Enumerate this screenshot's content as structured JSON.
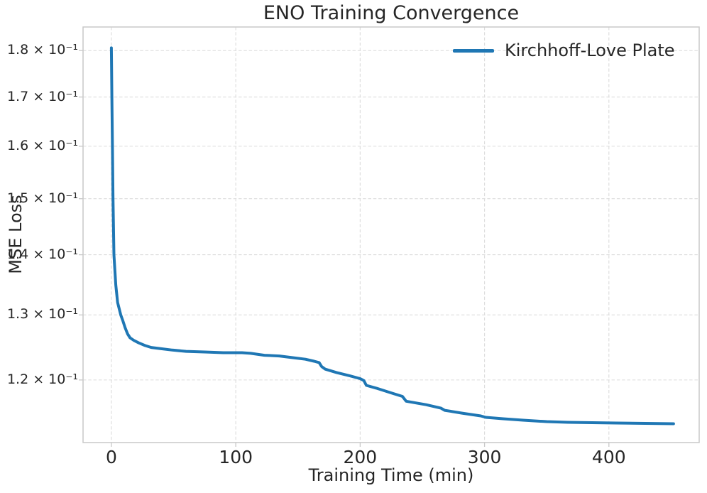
{
  "chart_data": {
    "type": "line",
    "title": "ENO Training Convergence",
    "xlabel": "Training Time (min)",
    "ylabel": "MSE Loss",
    "y_scale": "log",
    "grid": true,
    "xlim": [
      -22.8,
      472.6
    ],
    "ylim": [
      0.1111,
      0.1853
    ],
    "x_ticks": [
      0,
      100,
      200,
      300,
      400
    ],
    "x_tick_labels": [
      "0",
      "100",
      "200",
      "300",
      "400"
    ],
    "y_ticks": [
      0.12,
      0.13,
      0.14,
      0.15,
      0.16,
      0.17,
      0.18
    ],
    "y_tick_labels": [
      "1.2 × 10⁻¹",
      "1.3 × 10⁻¹",
      "1.4 × 10⁻¹",
      "1.5 × 10⁻¹",
      "1.6 × 10⁻¹",
      "1.7 × 10⁻¹",
      "1.8 × 10⁻¹"
    ],
    "legend": {
      "position": "upper right",
      "frame": false
    },
    "series": [
      {
        "name": "Kirchhoff-Love Plate",
        "color": "#1f77b4",
        "line_width": 4,
        "points": [
          [
            0,
            0.1806
          ],
          [
            0.4,
            0.17
          ],
          [
            0.8,
            0.16
          ],
          [
            1.3,
            0.15
          ],
          [
            2,
            0.14
          ],
          [
            3.5,
            0.1349
          ],
          [
            5,
            0.132
          ],
          [
            7.5,
            0.13
          ],
          [
            9,
            0.1292
          ],
          [
            11,
            0.128
          ],
          [
            13,
            0.127
          ],
          [
            15,
            0.1264
          ],
          [
            18,
            0.126
          ],
          [
            22,
            0.1256
          ],
          [
            27,
            0.1252
          ],
          [
            32,
            0.1249
          ],
          [
            40,
            0.1247
          ],
          [
            49,
            0.1245
          ],
          [
            60,
            0.1243
          ],
          [
            75,
            0.1242
          ],
          [
            90,
            0.1241
          ],
          [
            105,
            0.1241
          ],
          [
            112,
            0.124
          ],
          [
            123,
            0.1237
          ],
          [
            135,
            0.1236
          ],
          [
            143,
            0.1234
          ],
          [
            156,
            0.1231
          ],
          [
            163,
            0.1228
          ],
          [
            167,
            0.1226
          ],
          [
            169,
            0.122
          ],
          [
            172,
            0.1216
          ],
          [
            181,
            0.1211
          ],
          [
            192,
            0.1206
          ],
          [
            200,
            0.1202
          ],
          [
            203,
            0.1199
          ],
          [
            205,
            0.1192
          ],
          [
            213,
            0.1188
          ],
          [
            225,
            0.1181
          ],
          [
            234,
            0.1176
          ],
          [
            237,
            0.1169
          ],
          [
            253,
            0.1164
          ],
          [
            265,
            0.1159
          ],
          [
            268,
            0.1156
          ],
          [
            282,
            0.1152
          ],
          [
            297,
            0.1148
          ],
          [
            301,
            0.1146
          ],
          [
            315,
            0.1144
          ],
          [
            331,
            0.1142
          ],
          [
            350,
            0.114
          ],
          [
            367,
            0.1139
          ],
          [
            406,
            0.1138
          ],
          [
            452,
            0.1137
          ]
        ]
      }
    ]
  },
  "style": {
    "line_color": "#1f77b4",
    "grid_color": "#dcdcdc",
    "spine_color": "#c9c9c9",
    "text_color": "#262626",
    "background_color": "#ffffff"
  }
}
